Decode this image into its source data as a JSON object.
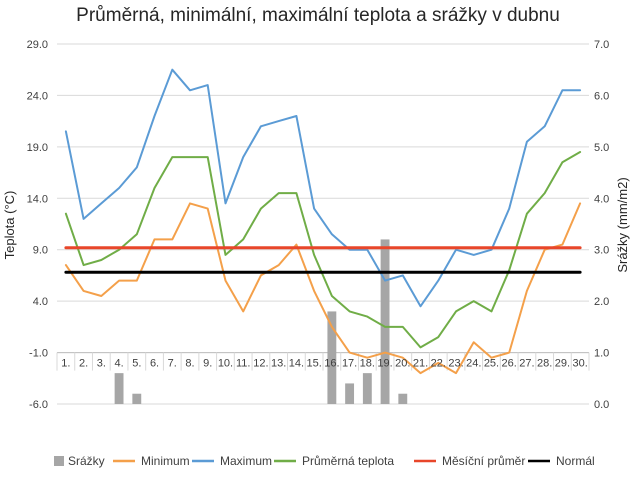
{
  "chart_data": {
    "type": "line",
    "title": "Průměrná, minimální, maximální teplota a srážky v dubnu",
    "ylabel": "Teplota (°C)",
    "y2label": "Srážky (mm/m2)",
    "ylim": [
      -6,
      29
    ],
    "y_ticks": [
      "29.0",
      "24.0",
      "19.0",
      "14.0",
      "9.0",
      "4.0",
      "-1.0",
      "-6.0"
    ],
    "y2lim": [
      0,
      7
    ],
    "y2_ticks": [
      "7.0",
      "6.0",
      "5.0",
      "4.0",
      "3.0",
      "2.0",
      "1.0",
      "0.0"
    ],
    "categories": [
      "1.",
      "2.",
      "3.",
      "4.",
      "5.",
      "6.",
      "7.",
      "8.",
      "9.",
      "10.",
      "11.",
      "12.",
      "13.",
      "14.",
      "15.",
      "16.",
      "17.",
      "18.",
      "19.",
      "20.",
      "21.",
      "22.",
      "23.",
      "24.",
      "25.",
      "26.",
      "27.",
      "28.",
      "29.",
      "30."
    ],
    "series": [
      {
        "name": "Srážky",
        "kind": "bar",
        "axis": "y2",
        "color": "#a6a6a6",
        "values": [
          0,
          0,
          0,
          0.6,
          0.2,
          0,
          0,
          0,
          0,
          0,
          0,
          0,
          0,
          0,
          0,
          1.8,
          0.4,
          0.6,
          3.2,
          0.2,
          0,
          0,
          0,
          0,
          0,
          0,
          0,
          0,
          0,
          0
        ]
      },
      {
        "name": "Minimum",
        "kind": "line",
        "axis": "y",
        "color": "#f4a04a",
        "values": [
          7.5,
          5.0,
          4.5,
          6.0,
          6.0,
          10.0,
          10.0,
          13.5,
          13.0,
          6.0,
          3.0,
          6.5,
          7.5,
          9.5,
          5.0,
          1.5,
          -1.0,
          -1.5,
          -1.0,
          -1.5,
          -3.0,
          -2.0,
          -3.0,
          0.0,
          -1.5,
          -1.0,
          5.0,
          9.0,
          9.5,
          13.5
        ]
      },
      {
        "name": "Maximum",
        "kind": "line",
        "axis": "y",
        "color": "#5b9bd5",
        "values": [
          20.5,
          12.0,
          13.5,
          15.0,
          17.0,
          22.0,
          26.5,
          24.5,
          25.0,
          13.5,
          18.0,
          21.0,
          21.5,
          22.0,
          13.0,
          10.5,
          9.0,
          9.0,
          6.0,
          6.5,
          3.5,
          6.0,
          9.0,
          8.5,
          9.0,
          13.0,
          19.5,
          21.0,
          24.5,
          24.5
        ]
      },
      {
        "name": "Průměrná teplota",
        "kind": "line",
        "axis": "y",
        "color": "#70ad47",
        "values": [
          12.5,
          7.5,
          8.0,
          9.0,
          10.5,
          15.0,
          18.0,
          18.0,
          18.0,
          8.5,
          10.0,
          13.0,
          14.5,
          14.5,
          8.5,
          4.5,
          3.0,
          2.5,
          1.5,
          1.5,
          -0.5,
          0.5,
          3.0,
          4.0,
          3.0,
          7.0,
          12.5,
          14.5,
          17.5,
          18.5
        ]
      },
      {
        "name": "Měsíční průměr",
        "kind": "line",
        "axis": "y",
        "color": "#e8462a",
        "values": [
          9.2,
          9.2,
          9.2,
          9.2,
          9.2,
          9.2,
          9.2,
          9.2,
          9.2,
          9.2,
          9.2,
          9.2,
          9.2,
          9.2,
          9.2,
          9.2,
          9.2,
          9.2,
          9.2,
          9.2,
          9.2,
          9.2,
          9.2,
          9.2,
          9.2,
          9.2,
          9.2,
          9.2,
          9.2,
          9.2
        ]
      },
      {
        "name": "Normál",
        "kind": "line",
        "axis": "y",
        "color": "#000000",
        "values": [
          6.8,
          6.8,
          6.8,
          6.8,
          6.8,
          6.8,
          6.8,
          6.8,
          6.8,
          6.8,
          6.8,
          6.8,
          6.8,
          6.8,
          6.8,
          6.8,
          6.8,
          6.8,
          6.8,
          6.8,
          6.8,
          6.8,
          6.8,
          6.8,
          6.8,
          6.8,
          6.8,
          6.8,
          6.8,
          6.8
        ]
      }
    ],
    "grid": true,
    "legend_position": "bottom"
  }
}
